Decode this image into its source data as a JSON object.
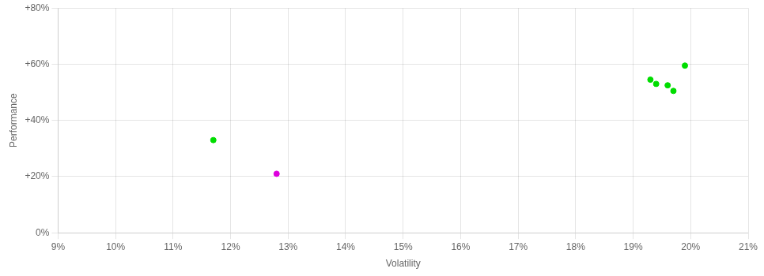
{
  "chart_data": {
    "type": "scatter",
    "xlabel": "Volatility",
    "ylabel": "Performance",
    "series": [
      {
        "color": "#00dd00",
        "x": [
          0.117,
          0.193,
          0.194,
          0.196,
          0.197,
          0.199
        ],
        "values": [
          0.33,
          0.545,
          0.53,
          0.525,
          0.505,
          0.595
        ]
      },
      {
        "color": "#dd00dd",
        "x": [
          0.128
        ],
        "values": [
          0.21
        ]
      }
    ],
    "xlim": [
      0.09,
      0.21
    ],
    "xticks": [
      {
        "value": 0.09,
        "label": "9%"
      },
      {
        "value": 0.1,
        "label": "10%"
      },
      {
        "value": 0.11,
        "label": "11%"
      },
      {
        "value": 0.12,
        "label": "12%"
      },
      {
        "value": 0.13,
        "label": "13%"
      },
      {
        "value": 0.14,
        "label": "14%"
      },
      {
        "value": 0.15,
        "label": "15%"
      },
      {
        "value": 0.16,
        "label": "16%"
      },
      {
        "value": 0.17,
        "label": "17%"
      },
      {
        "value": 0.18,
        "label": "18%"
      },
      {
        "value": 0.19,
        "label": "19%"
      },
      {
        "value": 0.2,
        "label": "20%"
      },
      {
        "value": 0.21,
        "label": "21%"
      }
    ],
    "ylim": [
      0.0,
      0.8
    ],
    "yticks": [
      {
        "value": 0.0,
        "label": "0%"
      },
      {
        "value": 0.2,
        "label": "+20%"
      },
      {
        "value": 0.4,
        "label": "+40%"
      },
      {
        "value": 0.6,
        "label": "+60%"
      },
      {
        "value": 0.8,
        "label": "+80%"
      }
    ],
    "grid": true
  }
}
